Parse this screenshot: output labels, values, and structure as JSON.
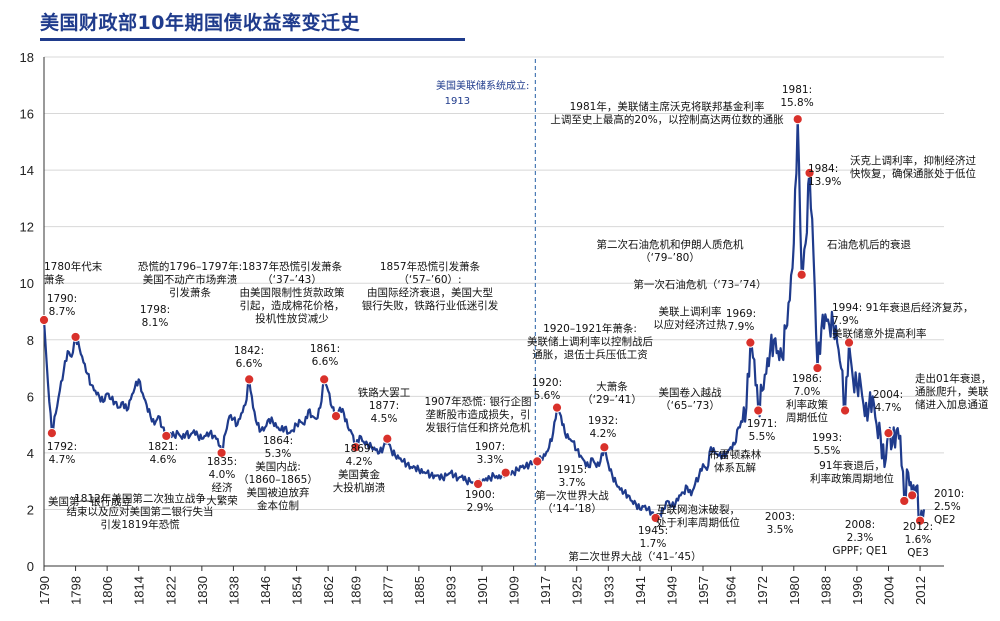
{
  "chart_data": {
    "type": "line",
    "title": "美国财政部10年期国债收益率变迁史",
    "xlabel": "",
    "ylabel": "",
    "xlim": [
      1790,
      2016
    ],
    "ylim": [
      0,
      18
    ],
    "y_ticks": [
      0,
      2,
      4,
      6,
      8,
      10,
      12,
      14,
      16,
      18
    ],
    "x_ticks": [
      1790,
      1798,
      1806,
      1814,
      1822,
      1830,
      1838,
      1846,
      1854,
      1862,
      1869,
      1877,
      1885,
      1893,
      1901,
      1909,
      1917,
      1925,
      1933,
      1941,
      1949,
      1957,
      1964,
      1972,
      1980,
      1988,
      1996,
      2004,
      2012
    ],
    "grid": true,
    "line_color": "#1f3b8c",
    "marker_color": "#d9312b",
    "series": [
      {
        "values": [
          [
            1790,
            8.7
          ],
          [
            1791,
            6.5
          ],
          [
            1792,
            4.7
          ],
          [
            1793,
            5.4
          ],
          [
            1794,
            6.2
          ],
          [
            1795,
            6.9
          ],
          [
            1796,
            7.6
          ],
          [
            1797,
            7.4
          ],
          [
            1798,
            8.1
          ],
          [
            1799,
            7.7
          ],
          [
            1800,
            7.2
          ],
          [
            1801,
            6.8
          ],
          [
            1802,
            6.4
          ],
          [
            1803,
            6.2
          ],
          [
            1804,
            6.0
          ],
          [
            1805,
            5.8
          ],
          [
            1806,
            6.1
          ],
          [
            1807,
            5.9
          ],
          [
            1808,
            5.8
          ],
          [
            1809,
            5.6
          ],
          [
            1810,
            5.8
          ],
          [
            1811,
            5.5
          ],
          [
            1812,
            5.9
          ],
          [
            1813,
            6.3
          ],
          [
            1814,
            6.6
          ],
          [
            1815,
            6.1
          ],
          [
            1816,
            5.7
          ],
          [
            1817,
            5.3
          ],
          [
            1818,
            5.0
          ],
          [
            1819,
            5.3
          ],
          [
            1820,
            4.9
          ],
          [
            1821,
            4.6
          ],
          [
            1822,
            4.7
          ],
          [
            1823,
            4.6
          ],
          [
            1824,
            4.7
          ],
          [
            1825,
            4.5
          ],
          [
            1826,
            4.7
          ],
          [
            1827,
            4.6
          ],
          [
            1828,
            4.8
          ],
          [
            1829,
            4.6
          ],
          [
            1830,
            4.5
          ],
          [
            1831,
            4.6
          ],
          [
            1832,
            4.7
          ],
          [
            1833,
            4.6
          ],
          [
            1834,
            4.5
          ],
          [
            1835,
            4.0
          ],
          [
            1836,
            4.7
          ],
          [
            1837,
            5.3
          ],
          [
            1838,
            5.2
          ],
          [
            1839,
            5.0
          ],
          [
            1840,
            5.4
          ],
          [
            1841,
            5.7
          ],
          [
            1842,
            6.6
          ],
          [
            1843,
            5.6
          ],
          [
            1844,
            5.0
          ],
          [
            1845,
            4.8
          ],
          [
            1846,
            4.9
          ],
          [
            1847,
            5.2
          ],
          [
            1848,
            5.1
          ],
          [
            1849,
            4.9
          ],
          [
            1850,
            4.8
          ],
          [
            1851,
            4.9
          ],
          [
            1852,
            4.7
          ],
          [
            1853,
            4.8
          ],
          [
            1854,
            5.0
          ],
          [
            1855,
            5.1
          ],
          [
            1856,
            5.0
          ],
          [
            1857,
            5.5
          ],
          [
            1858,
            5.3
          ],
          [
            1859,
            5.2
          ],
          [
            1860,
            5.6
          ],
          [
            1861,
            6.6
          ],
          [
            1862,
            6.2
          ],
          [
            1863,
            5.6
          ],
          [
            1864,
            5.3
          ],
          [
            1865,
            5.6
          ],
          [
            1866,
            5.4
          ],
          [
            1867,
            4.9
          ],
          [
            1868,
            4.7
          ],
          [
            1869,
            4.2
          ],
          [
            1870,
            4.6
          ],
          [
            1871,
            4.4
          ],
          [
            1872,
            4.3
          ],
          [
            1873,
            4.2
          ],
          [
            1874,
            4.1
          ],
          [
            1875,
            4.0
          ],
          [
            1876,
            4.2
          ],
          [
            1877,
            4.5
          ],
          [
            1878,
            4.1
          ],
          [
            1879,
            3.9
          ],
          [
            1880,
            3.8
          ],
          [
            1881,
            3.7
          ],
          [
            1882,
            3.6
          ],
          [
            1883,
            3.5
          ],
          [
            1884,
            3.5
          ],
          [
            1885,
            3.4
          ],
          [
            1886,
            3.3
          ],
          [
            1887,
            3.3
          ],
          [
            1888,
            3.2
          ],
          [
            1889,
            3.2
          ],
          [
            1890,
            3.2
          ],
          [
            1891,
            3.1
          ],
          [
            1892,
            3.2
          ],
          [
            1893,
            3.3
          ],
          [
            1894,
            3.2
          ],
          [
            1895,
            3.1
          ],
          [
            1896,
            3.2
          ],
          [
            1897,
            3.0
          ],
          [
            1898,
            3.0
          ],
          [
            1899,
            2.9
          ],
          [
            1900,
            2.9
          ],
          [
            1901,
            3.0
          ],
          [
            1902,
            3.1
          ],
          [
            1903,
            3.1
          ],
          [
            1904,
            3.2
          ],
          [
            1905,
            3.1
          ],
          [
            1906,
            3.2
          ],
          [
            1907,
            3.3
          ],
          [
            1908,
            3.3
          ],
          [
            1909,
            3.3
          ],
          [
            1910,
            3.4
          ],
          [
            1911,
            3.5
          ],
          [
            1912,
            3.5
          ],
          [
            1913,
            3.6
          ],
          [
            1914,
            3.7
          ],
          [
            1915,
            3.7
          ],
          [
            1916,
            3.8
          ],
          [
            1917,
            3.9
          ],
          [
            1918,
            4.2
          ],
          [
            1919,
            4.7
          ],
          [
            1920,
            5.6
          ],
          [
            1921,
            5.3
          ],
          [
            1922,
            4.7
          ],
          [
            1923,
            4.5
          ],
          [
            1924,
            4.4
          ],
          [
            1925,
            4.1
          ],
          [
            1926,
            3.9
          ],
          [
            1927,
            3.7
          ],
          [
            1928,
            3.5
          ],
          [
            1929,
            3.8
          ],
          [
            1930,
            3.5
          ],
          [
            1931,
            3.7
          ],
          [
            1932,
            4.2
          ],
          [
            1933,
            3.6
          ],
          [
            1934,
            3.2
          ],
          [
            1935,
            2.9
          ],
          [
            1936,
            2.7
          ],
          [
            1937,
            2.6
          ],
          [
            1938,
            2.5
          ],
          [
            1939,
            2.3
          ],
          [
            1940,
            2.2
          ],
          [
            1941,
            2.0
          ],
          [
            1942,
            2.1
          ],
          [
            1943,
            2.0
          ],
          [
            1944,
            1.9
          ],
          [
            1945,
            1.7
          ],
          [
            1946,
            1.8
          ],
          [
            1947,
            2.0
          ],
          [
            1948,
            2.3
          ],
          [
            1949,
            2.1
          ],
          [
            1950,
            2.2
          ],
          [
            1951,
            2.5
          ],
          [
            1952,
            2.6
          ],
          [
            1953,
            2.8
          ],
          [
            1954,
            2.5
          ],
          [
            1955,
            2.9
          ],
          [
            1956,
            3.2
          ],
          [
            1957,
            3.6
          ],
          [
            1958,
            3.4
          ],
          [
            1959,
            4.2
          ],
          [
            1960,
            4.0
          ],
          [
            1961,
            3.9
          ],
          [
            1962,
            3.9
          ],
          [
            1963,
            4.0
          ],
          [
            1964,
            4.2
          ],
          [
            1965,
            4.3
          ],
          [
            1966,
            4.9
          ],
          [
            1967,
            5.1
          ],
          [
            1968,
            5.6
          ],
          [
            1969,
            7.9
          ],
          [
            1970,
            7.3
          ],
          [
            1971,
            5.5
          ],
          [
            1972,
            6.2
          ],
          [
            1973,
            6.8
          ],
          [
            1974,
            7.6
          ],
          [
            1975,
            8.0
          ],
          [
            1976,
            7.6
          ],
          [
            1977,
            7.4
          ],
          [
            1978,
            8.4
          ],
          [
            1979,
            9.4
          ],
          [
            1980,
            11.4
          ],
          [
            1981,
            15.8
          ],
          [
            1982,
            10.3
          ],
          [
            1983,
            11.4
          ],
          [
            1984,
            13.9
          ],
          [
            1985,
            11.0
          ],
          [
            1986,
            7.0
          ],
          [
            1987,
            8.4
          ],
          [
            1988,
            8.9
          ],
          [
            1989,
            8.5
          ],
          [
            1990,
            8.6
          ],
          [
            1991,
            7.9
          ],
          [
            1992,
            7.0
          ],
          [
            1993,
            5.5
          ],
          [
            1994,
            7.9
          ],
          [
            1995,
            6.6
          ],
          [
            1996,
            6.4
          ],
          [
            1997,
            6.4
          ],
          [
            1998,
            5.3
          ],
          [
            1999,
            5.6
          ],
          [
            2000,
            6.0
          ],
          [
            2001,
            5.0
          ],
          [
            2002,
            4.6
          ],
          [
            2003,
            3.5
          ],
          [
            2004,
            4.7
          ],
          [
            2005,
            4.3
          ],
          [
            2006,
            4.8
          ],
          [
            2007,
            4.6
          ],
          [
            2008,
            2.3
          ],
          [
            2009,
            3.3
          ],
          [
            2010,
            2.5
          ],
          [
            2011,
            2.8
          ],
          [
            2012,
            1.6
          ],
          [
            2013,
            2.0
          ]
        ]
      }
    ],
    "vline": {
      "x": 1913,
      "color": "#4a7ab5",
      "label_line1": "美国美联储系统成立:",
      "label_line2": "1913"
    },
    "markers": [
      1790,
      1792,
      1798,
      1821,
      1835,
      1842,
      1861,
      1864,
      1869,
      1877,
      1900,
      1907,
      1915,
      1920,
      1932,
      1945,
      1969,
      1971,
      1981,
      1982,
      1984,
      1986,
      1993,
      1994,
      2004,
      2008,
      2010,
      2012
    ],
    "annotations": [
      {
        "lines": [
          "1780年代末",
          "萧条"
        ]
      },
      {
        "lines": [
          "1790:",
          "8.7%"
        ]
      },
      {
        "lines": [
          "恐慌的1796–1797年:",
          "美国不动产市场奔溃",
          "引发萧条"
        ]
      },
      {
        "lines": [
          "1798:",
          "8.1%"
        ]
      },
      {
        "lines": [
          "1837年恐慌引发萧条",
          "（‘37–’43）",
          "由美国限制性货款政策",
          "引起，造成棉花价格，",
          "投机性放贷减少"
        ]
      },
      {
        "lines": [
          "1857年恐慌引发萧条",
          "（‘57–’60）:",
          "由国际经济衰退，美国大型",
          "银行失败，铁路行业低迷引发"
        ]
      },
      {
        "lines": [
          "1842:",
          "6.6%"
        ]
      },
      {
        "lines": [
          "1861:",
          "6.6%"
        ]
      },
      {
        "lines": [
          "1792:",
          "4.7%"
        ]
      },
      {
        "lines": [
          "美国第一银行成立"
        ]
      },
      {
        "lines": [
          "1812年美国第二次独立战争",
          "结束以及应对美国第二银行失当",
          "引发1819年恐慌"
        ]
      },
      {
        "lines": [
          "1821:",
          "4.6%"
        ]
      },
      {
        "lines": [
          "1835:",
          "4.0%",
          "经济",
          "大繁荣"
        ]
      },
      {
        "lines": [
          "1864:",
          "5.3%",
          "美国内战:",
          "（1860–1865）",
          "美国被迫放弃",
          "金本位制"
        ]
      },
      {
        "lines": [
          "1869:",
          "4.2%",
          "美国黄金",
          "大投机崩溃"
        ]
      },
      {
        "lines": [
          "铁路大罢工",
          "1877:",
          "4.5%"
        ]
      },
      {
        "lines": [
          "1907年恐慌: 银行企图",
          "垄断股市造成损失，引",
          "发银行信任和挤兑危机"
        ]
      },
      {
        "lines": [
          "1907:",
          "3.3%"
        ]
      },
      {
        "lines": [
          "1900:",
          "2.9%"
        ]
      },
      {
        "lines": [
          "1920–1921年萧条:",
          "美联储上调利率以控制战后",
          "通胀，退伍士兵压低工资"
        ]
      },
      {
        "lines": [
          "1920:",
          "5.6%"
        ]
      },
      {
        "lines": [
          "大萧条",
          "（‘29–’41）"
        ]
      },
      {
        "lines": [
          "1932:",
          "4.2%"
        ]
      },
      {
        "lines": [
          "1915:",
          "3.7%",
          "第一次世界大战",
          "（‘14–’18）"
        ]
      },
      {
        "lines": [
          "1945:",
          "1.7%"
        ]
      },
      {
        "lines": [
          "第二次世界大战（‘41–’45）"
        ]
      },
      {
        "lines": [
          "1981年，美联储主席沃克将联邦基金利率",
          "上调至史上最高的20%，以控制高达两位数的通胀"
        ]
      },
      {
        "lines": [
          "1981:",
          "15.8%"
        ]
      },
      {
        "lines": [
          "1984:",
          "13.9%"
        ]
      },
      {
        "lines": [
          "沃克上调利率，抑制经济过",
          "快恢复，确保通胀处于低位"
        ]
      },
      {
        "lines": [
          "第二次石油危机和伊朗人质危机",
          "（‘79–’80）"
        ]
      },
      {
        "lines": [
          "石油危机后的衰退"
        ]
      },
      {
        "lines": [
          "第一次石油危机（‘73–’74）"
        ]
      },
      {
        "lines": [
          "美联上调利率",
          "以应对经济过热"
        ]
      },
      {
        "lines": [
          "1969:",
          "7.9%"
        ]
      },
      {
        "lines": [
          "1994: 91年衰退后经济复苏，",
          "7.9%",
          "美联储意外提高利率"
        ]
      },
      {
        "lines": [
          "美国卷入越战",
          "（‘65–’73）"
        ]
      },
      {
        "lines": [
          "1971:",
          "5.5%"
        ]
      },
      {
        "lines": [
          "布雷顿森林",
          "体系瓦解"
        ]
      },
      {
        "lines": [
          "1986:",
          "7.0%",
          "利率政策",
          "周期低位"
        ]
      },
      {
        "lines": [
          "1993:",
          "5.5%"
        ]
      },
      {
        "lines": [
          "2004:",
          "4.7%"
        ]
      },
      {
        "lines": [
          "走出01年衰退，",
          "通胀爬升，美联",
          "储进入加息通道"
        ]
      },
      {
        "lines": [
          "91年衰退后，",
          "利率政策周期地位"
        ]
      },
      {
        "lines": [
          "互联网泡沫破裂，",
          "处于利率周期低位"
        ]
      },
      {
        "lines": [
          "2003:",
          "3.5%"
        ]
      },
      {
        "lines": [
          "2008:",
          "2.3%",
          "GPPF; QE1"
        ]
      },
      {
        "lines": [
          "2010:",
          "2.5%",
          "QE2"
        ]
      },
      {
        "lines": [
          "2012:",
          "1.6%",
          "QE3"
        ]
      }
    ]
  }
}
